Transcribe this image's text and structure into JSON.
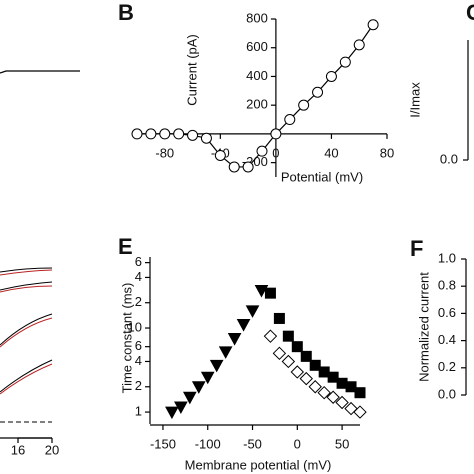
{
  "chart_data": [
    {
      "type": "line",
      "panel_label": "B",
      "xlabel": "Potential (mV)",
      "ylabel": "Current (pA)",
      "xlim": [
        -100,
        80
      ],
      "ylim": [
        -300,
        800
      ],
      "xticks": [
        -80,
        -40,
        0,
        40,
        80
      ],
      "yticks": [
        -200,
        200,
        400,
        600,
        800
      ],
      "series": [
        {
          "color": "#000000",
          "marker": "circle",
          "x": [
            -100,
            -90,
            -80,
            -70,
            -60,
            -50,
            -40,
            -30,
            -20,
            -10,
            0,
            10,
            20,
            30,
            40,
            50,
            60,
            70
          ],
          "values": [
            0,
            0,
            0,
            0,
            -10,
            -30,
            -150,
            -230,
            -230,
            -120,
            0,
            100,
            200,
            290,
            400,
            500,
            620,
            760
          ]
        }
      ]
    },
    {
      "type": "scatter",
      "panel_label": "E",
      "xlabel": "Membrane potential (mV)",
      "ylabel": "Time constant (ms)",
      "xlim": [
        -160,
        70
      ],
      "ylim": [
        0.85,
        70
      ],
      "log_y": true,
      "xticks": [
        -150,
        -100,
        -50,
        0,
        50
      ],
      "yticks": [
        1,
        2,
        4,
        6,
        10,
        {
          "value": 20,
          "label": "2"
        },
        {
          "value": 40,
          "label": "4"
        },
        {
          "value": 60,
          "label": "6"
        }
      ],
      "series": [
        {
          "color": "#000000",
          "marker": "triangle-down",
          "x": [
            -140,
            -130,
            -120,
            -110,
            -100,
            -90,
            -80,
            -70,
            -60,
            -50
          ],
          "values": [
            1,
            1.15,
            1.5,
            2,
            2.6,
            3.6,
            5.2,
            7.5,
            11,
            16
          ]
        },
        {
          "color": "#000000",
          "marker": "triangle-down",
          "x": [
            -40
          ],
          "values": [
            28
          ]
        },
        {
          "color": "#000000",
          "marker": "square",
          "x": [
            -30,
            -20,
            -10,
            0,
            10,
            20,
            30,
            40,
            50,
            60,
            70
          ],
          "values": [
            26,
            13,
            8,
            6,
            4.6,
            3.6,
            3,
            2.6,
            2.2,
            2,
            1.7
          ]
        },
        {
          "color": "#000000",
          "marker": "diamond",
          "x": [
            -30,
            -20,
            -10,
            0,
            10,
            20,
            30,
            40,
            50,
            60,
            70
          ],
          "values": [
            8,
            5,
            4,
            3,
            2.5,
            2,
            1.7,
            1.5,
            1.3,
            1.1,
            1
          ]
        }
      ]
    },
    {
      "type": "axis",
      "panel_label": "C",
      "ylabel": "I/Imax",
      "ylim": [
        0,
        1
      ],
      "yticks": [
        {
          "value": 0,
          "label": "0.0"
        }
      ]
    },
    {
      "type": "axis",
      "panel_label": "F",
      "ylabel": "Normalized current",
      "ylim": [
        0,
        1
      ],
      "yticks": [
        {
          "value": 0,
          "label": "0.0"
        },
        {
          "value": 0.2,
          "label": "0.2"
        },
        {
          "value": 0.4,
          "label": "0.4"
        },
        {
          "value": 0.6,
          "label": "0.6"
        },
        {
          "value": 0.8,
          "label": "0.8"
        },
        {
          "value": 1,
          "label": "1.0"
        }
      ]
    },
    {
      "type": "axis",
      "xlim": [
        16,
        20
      ],
      "xticks": [
        16,
        20
      ]
    }
  ]
}
